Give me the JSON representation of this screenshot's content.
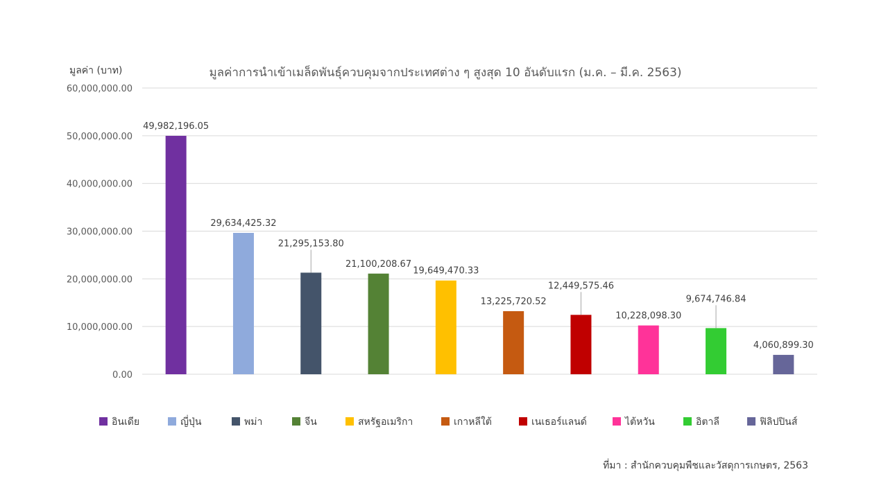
{
  "chart_data": {
    "type": "bar",
    "title": "มูลค่าการนำเข้าเมล็ดพันธุ์ควบคุมจากประเทศต่าง ๆ สูงสุด 10 อันดับแรก (ม.ค. – มี.ค. 2563)",
    "ylabel": "มูลค่า (บาท)",
    "xlabel": "",
    "ylim": [
      0,
      60000000
    ],
    "yticks": [
      0,
      10000000,
      20000000,
      30000000,
      40000000,
      50000000,
      60000000
    ],
    "ytick_labels": [
      "0.00",
      "10,000,000.00",
      "20,000,000.00",
      "30,000,000.00",
      "40,000,000.00",
      "50,000,000.00",
      "60,000,000.00"
    ],
    "grid": true,
    "legend_position": "bottom",
    "categories": [
      "อินเดีย",
      "ญี่ปุ่น",
      "พม่า",
      "จีน",
      "สหรัฐอเมริกา",
      "เกาหลีใต้",
      "เนเธอร์แลนด์",
      "ไต้หวัน",
      "อิตาลี",
      "ฟิลิปปินส์"
    ],
    "values": [
      49982196.05,
      29634425.32,
      21295153.8,
      21100208.67,
      19649470.33,
      13225720.52,
      12449575.46,
      10228098.3,
      9674746.84,
      4060899.3
    ],
    "value_labels": [
      "49,982,196.05",
      "29,634,425.32",
      "21,295,153.80",
      "21,100,208.67",
      "19,649,470.33",
      "13,225,720.52",
      "12,449,575.46",
      "10,228,098.30",
      "9,674,746.84",
      "4,060,899.30"
    ],
    "colors": [
      "#7030A0",
      "#8FAADC",
      "#44546A",
      "#548235",
      "#FFC000",
      "#C55A11",
      "#C00000",
      "#FF3399",
      "#33CC33",
      "#666699"
    ],
    "source": "ที่มา : สำนักควบคุมพืชและวัสดุการเกษตร, 2563"
  }
}
